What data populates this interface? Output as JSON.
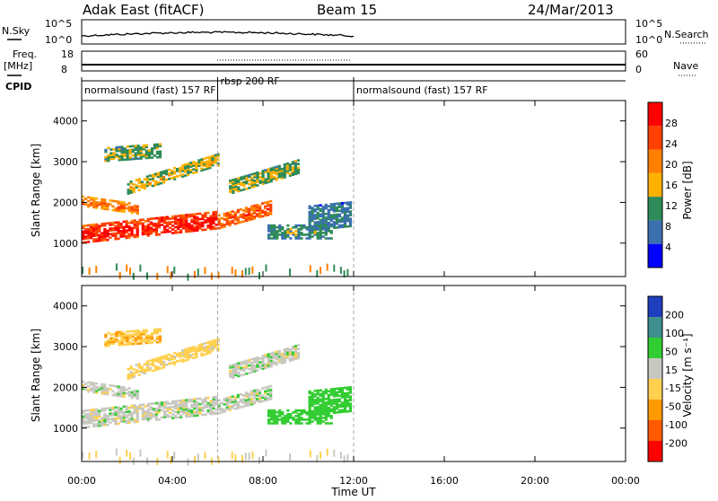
{
  "header": {
    "station": "Adak East (fitACF)",
    "beam": "Beam 15",
    "date": "24/Mar/2013"
  },
  "strip_labels": {
    "nsky": "N.Sky",
    "nsearch": "N.Search",
    "freq": "Freq.",
    "freq_unit": "[MHz]",
    "nave": "Nave",
    "cpid": "CPID"
  },
  "strip_ticks": {
    "noise_left": [
      "10^5",
      "10^0"
    ],
    "noise_right": [
      "10^5",
      "10^0"
    ],
    "freq_left": [
      "18",
      "8"
    ],
    "nave_right": [
      "60",
      "0"
    ]
  },
  "cpid_segments": [
    {
      "label": "normalsound (fast) 157 RF",
      "start": 0,
      "end": 6
    },
    {
      "label": "rbsp 200 RF",
      "start": 6,
      "end": 12
    },
    {
      "label": "normalsound (fast) 157 RF",
      "start": 12,
      "end": 24
    }
  ],
  "colorbars": {
    "power": {
      "label": "Power [dB]",
      "ticks": [
        "28",
        "24",
        "20",
        "16",
        "12",
        "8",
        "4"
      ],
      "colors": [
        "#ff0000",
        "#ff4000",
        "#ff8000",
        "#ffb000",
        "#2e8b57",
        "#3a6fb0",
        "#0000ff"
      ]
    },
    "velocity": {
      "label": "Velocity [m s⁻¹]",
      "ticks": [
        "200",
        "100",
        "50",
        "15",
        "-15",
        "-50",
        "-100",
        "-200"
      ],
      "colors": [
        "#1f3fbf",
        "#3f8f8f",
        "#32cd32",
        "#c8c8c0",
        "#ffd050",
        "#ff9a00",
        "#ff5a00",
        "#ff0000"
      ]
    }
  },
  "chart_data": [
    {
      "type": "heatmap",
      "title": "Power",
      "ylabel": "Slant Range [km]",
      "xlabel": "Time UT",
      "xticks": [
        "00:00",
        "04:00",
        "08:00",
        "12:00",
        "16:00",
        "20:00",
        "00:00"
      ],
      "xlim": [
        0,
        24
      ],
      "yticks": [
        "1000",
        "2000",
        "3000",
        "4000"
      ],
      "ylim": [
        180,
        4500
      ],
      "echo_bands": [
        {
          "t": [
            0.0,
            6.0
          ],
          "range_start": [
            1000,
            1350
          ],
          "width": 450,
          "power": 28
        },
        {
          "t": [
            6.0,
            8.3
          ],
          "range_start": [
            1350,
            1700
          ],
          "width": 350,
          "power": 24
        },
        {
          "t": [
            0.0,
            2.5
          ],
          "range_start": [
            1900,
            1700
          ],
          "width": 250,
          "power": 22
        },
        {
          "t": [
            2.0,
            6.0
          ],
          "range_start": [
            2200,
            2900
          ],
          "width": 300,
          "power": 16
        },
        {
          "t": [
            1.0,
            3.5
          ],
          "range_start": [
            3000,
            3100
          ],
          "width": 350,
          "power": 14
        },
        {
          "t": [
            6.5,
            9.5
          ],
          "range_start": [
            2200,
            2700
          ],
          "width": 350,
          "power": 14
        },
        {
          "t": [
            8.2,
            11.0
          ],
          "range_start": [
            1100,
            1100
          ],
          "width": 350,
          "power": 12
        },
        {
          "t": [
            10.0,
            11.8
          ],
          "range_start": [
            1300,
            1400
          ],
          "width": 600,
          "power": 10
        }
      ]
    },
    {
      "type": "heatmap",
      "title": "Velocity",
      "ylabel": "Slant Range [km]",
      "xlabel": "Time UT",
      "xticks": [
        "00:00",
        "04:00",
        "08:00",
        "12:00",
        "16:00",
        "20:00",
        "00:00"
      ],
      "xlim": [
        0,
        24
      ],
      "yticks": [
        "1000",
        "2000",
        "3000",
        "4000"
      ],
      "ylim": [
        180,
        4500
      ],
      "echo_bands": [
        {
          "t": [
            0.0,
            6.0
          ],
          "range_start": [
            1000,
            1350
          ],
          "width": 450,
          "velocity": 0
        },
        {
          "t": [
            6.0,
            8.3
          ],
          "range_start": [
            1350,
            1700
          ],
          "width": 350,
          "velocity": 0
        },
        {
          "t": [
            0.0,
            2.5
          ],
          "range_start": [
            1900,
            1700
          ],
          "width": 250,
          "velocity": 0
        },
        {
          "t": [
            2.0,
            6.0
          ],
          "range_start": [
            2200,
            2900
          ],
          "width": 300,
          "velocity": -30
        },
        {
          "t": [
            1.0,
            3.5
          ],
          "range_start": [
            3000,
            3100
          ],
          "width": 350,
          "velocity": -40
        },
        {
          "t": [
            6.5,
            9.5
          ],
          "range_start": [
            2200,
            2700
          ],
          "width": 350,
          "velocity": 0
        },
        {
          "t": [
            8.2,
            11.0
          ],
          "range_start": [
            1100,
            1100
          ],
          "width": 350,
          "velocity": 40
        },
        {
          "t": [
            10.0,
            11.8
          ],
          "range_start": [
            1300,
            1400
          ],
          "width": 600,
          "velocity": 40
        }
      ]
    }
  ]
}
